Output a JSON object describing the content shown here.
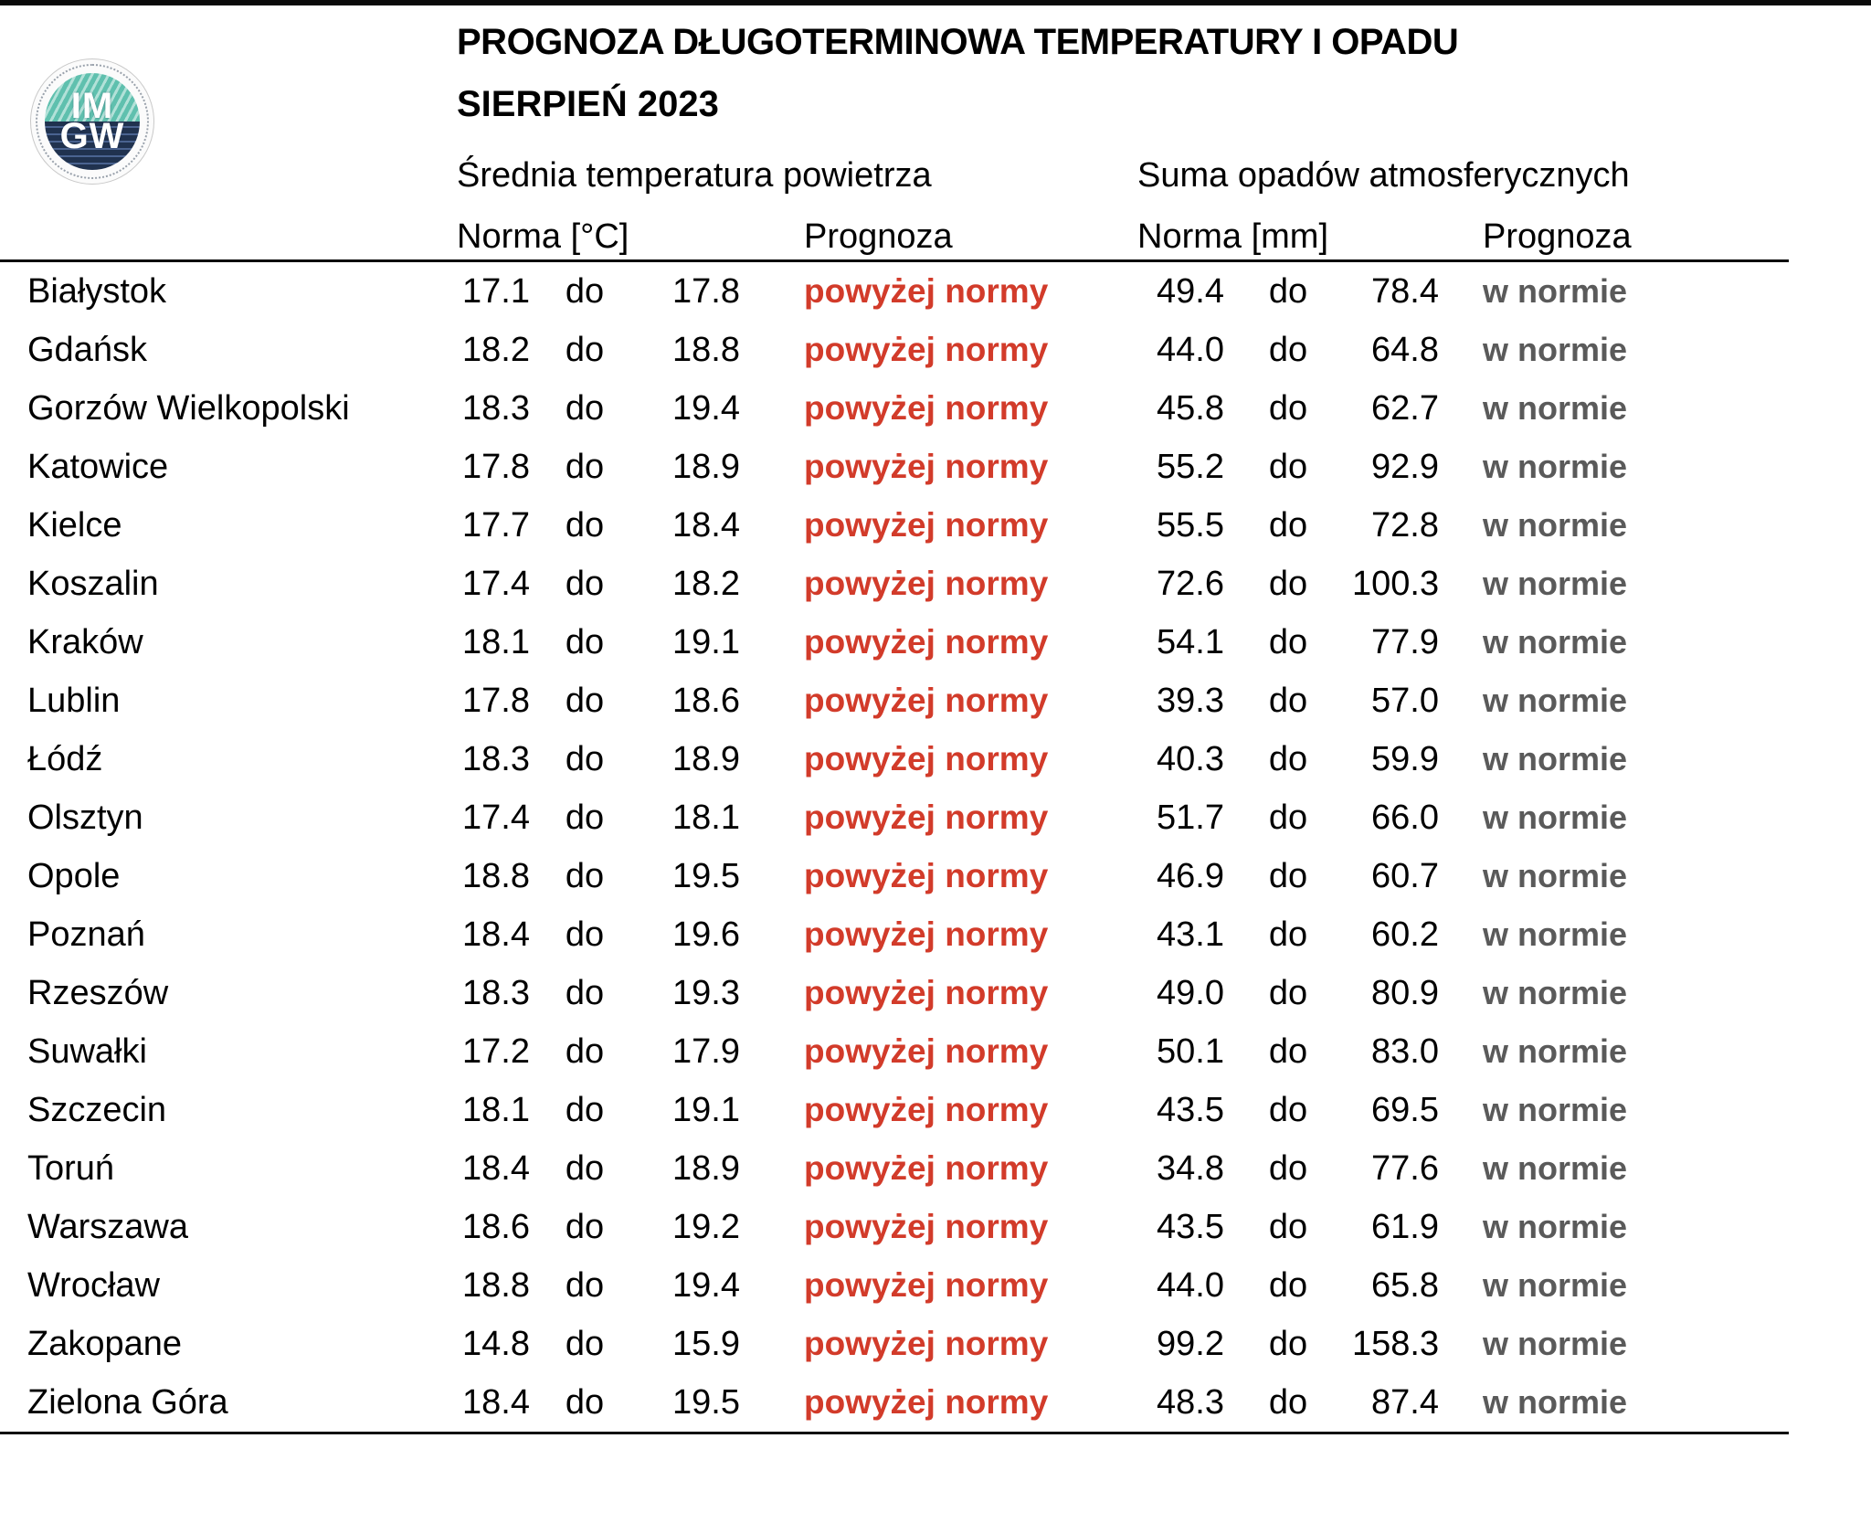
{
  "page": {
    "title": "PROGNOZA DŁUGOTERMINOWA TEMPERATURY I OPADU",
    "subtitle": "SIERPIEŃ 2023"
  },
  "logo": {
    "line1": "IM",
    "line2": "GW"
  },
  "columns": {
    "temp_group": "Średnia temperatura powietrza",
    "precip_group": "Suma opadów atmosferycznych",
    "temp_norm": "Norma [°C]",
    "temp_forecast": "Prognoza",
    "precip_norm": "Norma [mm]",
    "precip_forecast": "Prognoza",
    "range_word": "do"
  },
  "colors": {
    "above_norm_red": "#d23b2a",
    "in_norm_gray": "#5a5a5a"
  },
  "rows": [
    {
      "city": "Białystok",
      "temp_min": "17.1",
      "temp_max": "17.8",
      "temp_forecast": "powyżej normy",
      "precip_min": "49.4",
      "precip_max": "78.4",
      "precip_forecast": "w normie"
    },
    {
      "city": "Gdańsk",
      "temp_min": "18.2",
      "temp_max": "18.8",
      "temp_forecast": "powyżej normy",
      "precip_min": "44.0",
      "precip_max": "64.8",
      "precip_forecast": "w normie"
    },
    {
      "city": "Gorzów Wielkopolski",
      "temp_min": "18.3",
      "temp_max": "19.4",
      "temp_forecast": "powyżej normy",
      "precip_min": "45.8",
      "precip_max": "62.7",
      "precip_forecast": "w normie"
    },
    {
      "city": "Katowice",
      "temp_min": "17.8",
      "temp_max": "18.9",
      "temp_forecast": "powyżej normy",
      "precip_min": "55.2",
      "precip_max": "92.9",
      "precip_forecast": "w normie"
    },
    {
      "city": "Kielce",
      "temp_min": "17.7",
      "temp_max": "18.4",
      "temp_forecast": "powyżej normy",
      "precip_min": "55.5",
      "precip_max": "72.8",
      "precip_forecast": "w normie"
    },
    {
      "city": "Koszalin",
      "temp_min": "17.4",
      "temp_max": "18.2",
      "temp_forecast": "powyżej normy",
      "precip_min": "72.6",
      "precip_max": "100.3",
      "precip_forecast": "w normie"
    },
    {
      "city": "Kraków",
      "temp_min": "18.1",
      "temp_max": "19.1",
      "temp_forecast": "powyżej normy",
      "precip_min": "54.1",
      "precip_max": "77.9",
      "precip_forecast": "w normie"
    },
    {
      "city": "Lublin",
      "temp_min": "17.8",
      "temp_max": "18.6",
      "temp_forecast": "powyżej normy",
      "precip_min": "39.3",
      "precip_max": "57.0",
      "precip_forecast": "w normie"
    },
    {
      "city": "Łódź",
      "temp_min": "18.3",
      "temp_max": "18.9",
      "temp_forecast": "powyżej normy",
      "precip_min": "40.3",
      "precip_max": "59.9",
      "precip_forecast": "w normie"
    },
    {
      "city": "Olsztyn",
      "temp_min": "17.4",
      "temp_max": "18.1",
      "temp_forecast": "powyżej normy",
      "precip_min": "51.7",
      "precip_max": "66.0",
      "precip_forecast": "w normie"
    },
    {
      "city": "Opole",
      "temp_min": "18.8",
      "temp_max": "19.5",
      "temp_forecast": "powyżej normy",
      "precip_min": "46.9",
      "precip_max": "60.7",
      "precip_forecast": "w normie"
    },
    {
      "city": "Poznań",
      "temp_min": "18.4",
      "temp_max": "19.6",
      "temp_forecast": "powyżej normy",
      "precip_min": "43.1",
      "precip_max": "60.2",
      "precip_forecast": "w normie"
    },
    {
      "city": "Rzeszów",
      "temp_min": "18.3",
      "temp_max": "19.3",
      "temp_forecast": "powyżej normy",
      "precip_min": "49.0",
      "precip_max": "80.9",
      "precip_forecast": "w normie"
    },
    {
      "city": "Suwałki",
      "temp_min": "17.2",
      "temp_max": "17.9",
      "temp_forecast": "powyżej normy",
      "precip_min": "50.1",
      "precip_max": "83.0",
      "precip_forecast": "w normie"
    },
    {
      "city": "Szczecin",
      "temp_min": "18.1",
      "temp_max": "19.1",
      "temp_forecast": "powyżej normy",
      "precip_min": "43.5",
      "precip_max": "69.5",
      "precip_forecast": "w normie"
    },
    {
      "city": "Toruń",
      "temp_min": "18.4",
      "temp_max": "18.9",
      "temp_forecast": "powyżej normy",
      "precip_min": "34.8",
      "precip_max": "77.6",
      "precip_forecast": "w normie"
    },
    {
      "city": "Warszawa",
      "temp_min": "18.6",
      "temp_max": "19.2",
      "temp_forecast": "powyżej normy",
      "precip_min": "43.5",
      "precip_max": "61.9",
      "precip_forecast": "w normie"
    },
    {
      "city": "Wrocław",
      "temp_min": "18.8",
      "temp_max": "19.4",
      "temp_forecast": "powyżej normy",
      "precip_min": "44.0",
      "precip_max": "65.8",
      "precip_forecast": "w normie"
    },
    {
      "city": "Zakopane",
      "temp_min": "14.8",
      "temp_max": "15.9",
      "temp_forecast": "powyżej normy",
      "precip_min": "99.2",
      "precip_max": "158.3",
      "precip_forecast": "w normie"
    },
    {
      "city": "Zielona Góra",
      "temp_min": "18.4",
      "temp_max": "19.5",
      "temp_forecast": "powyżej normy",
      "precip_min": "48.3",
      "precip_max": "87.4",
      "precip_forecast": "w normie"
    }
  ]
}
